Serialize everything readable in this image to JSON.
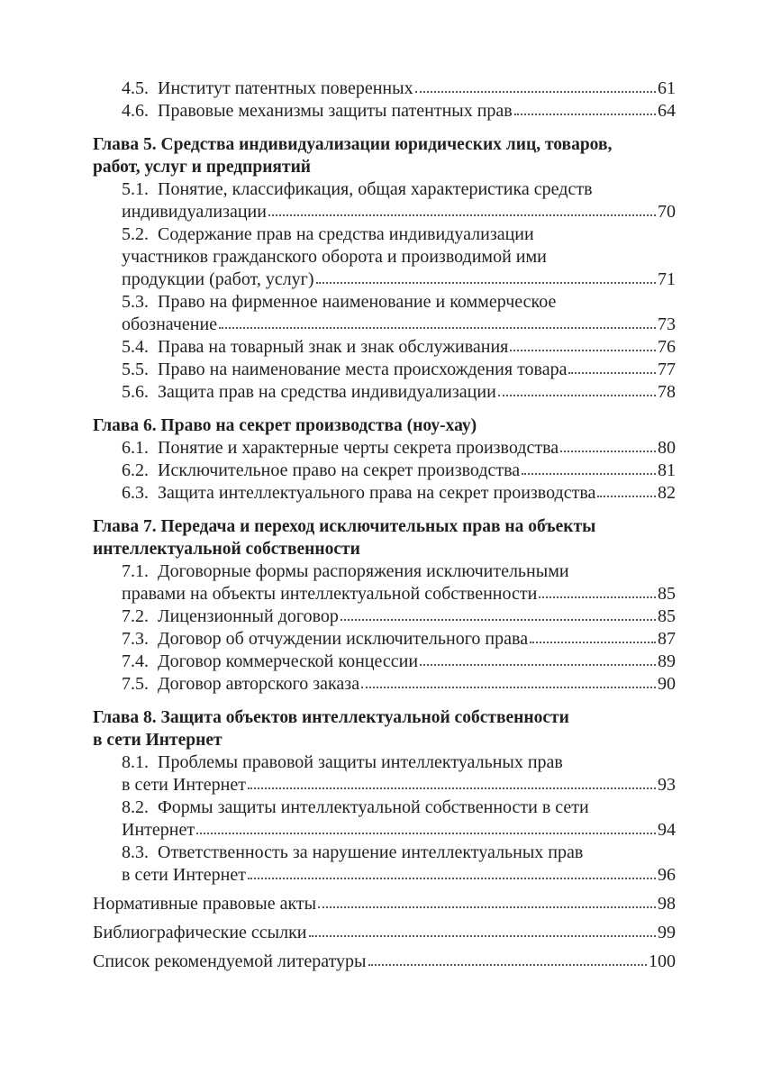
{
  "toc": [
    {
      "kind": "section",
      "lines": [
        "4.5.  Институт патентных поверенных"
      ],
      "page": "61"
    },
    {
      "kind": "section",
      "lines": [
        "4.6.  Правовые механизмы защиты патентных прав"
      ],
      "page": "64"
    },
    {
      "kind": "chapter",
      "lines": [
        "Глава 5. Средства индивидуализации юридических лиц, товаров,",
        "работ, услуг и предприятий"
      ]
    },
    {
      "kind": "section",
      "lines": [
        "5.1.  Понятие, классификация, общая характеристика средств",
        "индивидуализации"
      ],
      "page": "70"
    },
    {
      "kind": "section",
      "lines": [
        "5.2.  Содержание прав на средства индивидуализации",
        "участников гражданского оборота и производимой ими",
        "продукции (работ, услуг)"
      ],
      "page": "71"
    },
    {
      "kind": "section",
      "lines": [
        "5.3.  Право на фирменное наименование и коммерческое",
        "обозначение"
      ],
      "page": "73"
    },
    {
      "kind": "section",
      "lines": [
        "5.4.  Права на товарный знак и знак обслуживания"
      ],
      "page": "76"
    },
    {
      "kind": "section",
      "lines": [
        "5.5.  Право на наименование места происхождения товара"
      ],
      "page": "77"
    },
    {
      "kind": "section",
      "lines": [
        "5.6.  Защита прав на средства индивидуализации"
      ],
      "page": "78"
    },
    {
      "kind": "chapter",
      "lines": [
        "Глава 6. Право на секрет производства (ноу-хау)"
      ]
    },
    {
      "kind": "section",
      "lines": [
        "6.1.  Понятие и характерные черты секрета производства"
      ],
      "page": "80"
    },
    {
      "kind": "section",
      "lines": [
        "6.2.  Исключительное право на секрет производства"
      ],
      "page": "81"
    },
    {
      "kind": "section",
      "lines": [
        "6.3.  Защита интеллектуального права на секрет производства"
      ],
      "page": "82"
    },
    {
      "kind": "chapter",
      "lines": [
        "Глава 7. Передача и переход исключительных прав на объекты",
        "интеллектуальной собственности"
      ]
    },
    {
      "kind": "section",
      "lines": [
        "7.1.  Договорные формы распоряжения исключительными",
        "правами на объекты интеллектуальной собственности"
      ],
      "page": "85"
    },
    {
      "kind": "section",
      "lines": [
        "7.2.  Лицензионный договор"
      ],
      "page": "85"
    },
    {
      "kind": "section",
      "lines": [
        "7.3.  Договор об отчуждении исключительного права"
      ],
      "page": "87"
    },
    {
      "kind": "section",
      "lines": [
        "7.4.  Договор коммерческой концессии"
      ],
      "page": "89"
    },
    {
      "kind": "section",
      "lines": [
        "7.5.  Договор авторского заказа"
      ],
      "page": "90"
    },
    {
      "kind": "chapter",
      "lines": [
        "Глава 8. Защита объектов интеллектуальной собственности",
        "в сети Интернет"
      ]
    },
    {
      "kind": "section",
      "lines": [
        "8.1.  Проблемы правовой защиты интеллектуальных прав",
        "в сети Интернет"
      ],
      "page": "93"
    },
    {
      "kind": "section",
      "lines": [
        "8.2.  Формы защиты интеллектуальной собственности в сети",
        "Интернет"
      ],
      "page": "94"
    },
    {
      "kind": "section",
      "lines": [
        "8.3.  Ответственность за нарушение интеллектуальных прав",
        "в сети Интернет"
      ],
      "page": "96"
    },
    {
      "kind": "end",
      "lines": [
        "Нормативные правовые акты"
      ],
      "page": "98"
    },
    {
      "kind": "end",
      "lines": [
        "Библиографические ссылки"
      ],
      "page": "99"
    },
    {
      "kind": "end",
      "lines": [
        "Список рекомендуемой литературы"
      ],
      "page": "100"
    }
  ]
}
